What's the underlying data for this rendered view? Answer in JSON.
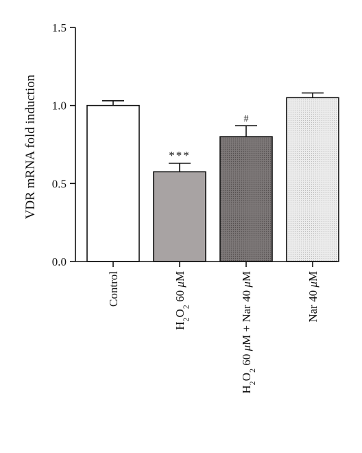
{
  "chart_data": {
    "type": "bar",
    "title": "",
    "xlabel": "",
    "ylabel": "VDR mRNA fold induction",
    "ylim": [
      0,
      1.5
    ],
    "yticks": [
      "0.0",
      "0.5",
      "1.0",
      "1.5"
    ],
    "grid": false,
    "categories": [
      {
        "label_html": "Control"
      },
      {
        "label_html": "H<tspan class='sub'>2</tspan>O<tspan class='sub'>2</tspan> 60 <tspan class='it'>μ</tspan>M"
      },
      {
        "label_html": "H<tspan class='sub'>2</tspan>O<tspan class='sub'>2</tspan> 60 <tspan class='it'>μ</tspan>M + Nar 40 <tspan class='it'>μ</tspan>M"
      },
      {
        "label_html": "Nar 40 <tspan class='it'>μ</tspan>M"
      }
    ],
    "category_text": [
      "Control",
      "H2O2 60 μM",
      "H2O2 60 μM + Nar 40 μM",
      "Nar 40 μM"
    ],
    "values": [
      1.0,
      0.575,
      0.8,
      1.05
    ],
    "errors": [
      0.03,
      0.055,
      0.07,
      0.03
    ],
    "annotations": [
      "",
      "***",
      "#",
      ""
    ],
    "fills": [
      "#ffffff",
      "#a8a3a3",
      "#7d7878",
      "#e2e2e2"
    ],
    "patterns": [
      "none",
      "none",
      "dots-dense",
      "dots-light"
    ]
  }
}
